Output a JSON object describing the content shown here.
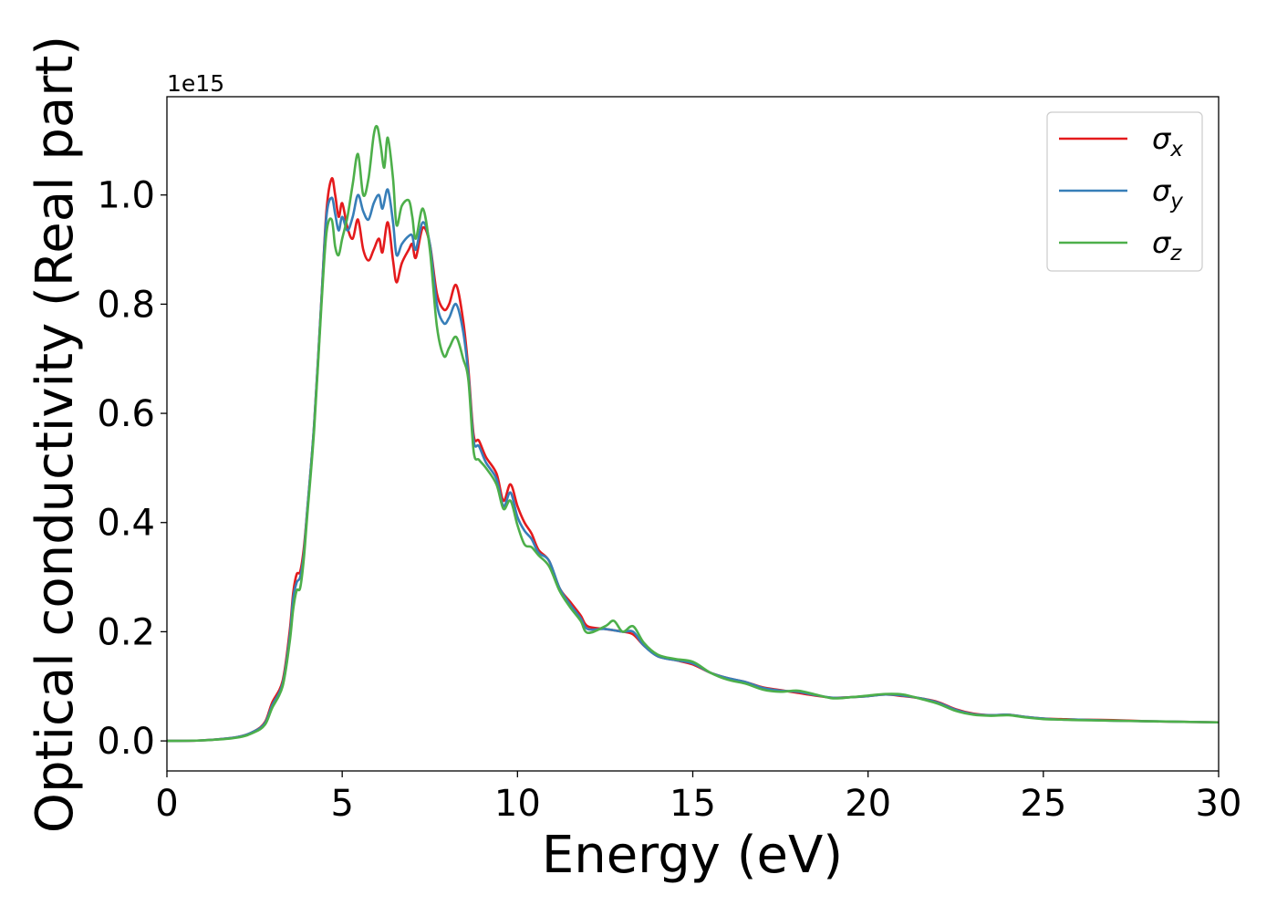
{
  "chart_data": {
    "type": "line",
    "title": "",
    "xlabel": "Energy (eV)",
    "ylabel": "Optical conductivity (Real part)",
    "y_scale_label": "1e15",
    "xlim": [
      0,
      30
    ],
    "ylim": [
      -0.055,
      1.18
    ],
    "x_ticks": [
      0,
      5,
      10,
      15,
      20,
      25,
      30
    ],
    "x_tick_labels": [
      "0",
      "5",
      "10",
      "15",
      "20",
      "25",
      "30"
    ],
    "y_ticks": [
      0.0,
      0.2,
      0.4,
      0.6,
      0.8,
      1.0
    ],
    "y_tick_labels": [
      "0.0",
      "0.2",
      "0.4",
      "0.6",
      "0.8",
      "1.0"
    ],
    "grid": false,
    "legend_position": "top-right",
    "series": [
      {
        "name": "σx",
        "color": "#e41a1c",
        "points": [
          [
            0,
            0
          ],
          [
            1,
            0.001
          ],
          [
            2,
            0.007
          ],
          [
            2.5,
            0.018
          ],
          [
            2.8,
            0.035
          ],
          [
            3.0,
            0.07
          ],
          [
            3.3,
            0.11
          ],
          [
            3.5,
            0.2
          ],
          [
            3.6,
            0.27
          ],
          [
            3.7,
            0.305
          ],
          [
            3.8,
            0.31
          ],
          [
            3.9,
            0.35
          ],
          [
            4.0,
            0.42
          ],
          [
            4.2,
            0.58
          ],
          [
            4.4,
            0.8
          ],
          [
            4.55,
            0.97
          ],
          [
            4.7,
            1.03
          ],
          [
            4.8,
            1.0
          ],
          [
            4.9,
            0.96
          ],
          [
            5.0,
            0.985
          ],
          [
            5.15,
            0.94
          ],
          [
            5.3,
            0.92
          ],
          [
            5.45,
            0.955
          ],
          [
            5.6,
            0.9
          ],
          [
            5.75,
            0.88
          ],
          [
            5.9,
            0.9
          ],
          [
            6.05,
            0.92
          ],
          [
            6.15,
            0.895
          ],
          [
            6.3,
            0.95
          ],
          [
            6.45,
            0.88
          ],
          [
            6.55,
            0.84
          ],
          [
            6.7,
            0.875
          ],
          [
            6.9,
            0.9
          ],
          [
            7.0,
            0.91
          ],
          [
            7.1,
            0.885
          ],
          [
            7.3,
            0.94
          ],
          [
            7.5,
            0.91
          ],
          [
            7.7,
            0.82
          ],
          [
            7.9,
            0.79
          ],
          [
            8.05,
            0.8
          ],
          [
            8.25,
            0.835
          ],
          [
            8.45,
            0.77
          ],
          [
            8.6,
            0.68
          ],
          [
            8.75,
            0.56
          ],
          [
            8.9,
            0.55
          ],
          [
            9.1,
            0.52
          ],
          [
            9.4,
            0.49
          ],
          [
            9.6,
            0.44
          ],
          [
            9.8,
            0.47
          ],
          [
            10.0,
            0.43
          ],
          [
            10.2,
            0.4
          ],
          [
            10.4,
            0.38
          ],
          [
            10.6,
            0.35
          ],
          [
            10.9,
            0.33
          ],
          [
            11.2,
            0.28
          ],
          [
            11.5,
            0.255
          ],
          [
            11.8,
            0.23
          ],
          [
            12.0,
            0.21
          ],
          [
            12.5,
            0.205
          ],
          [
            13.0,
            0.2
          ],
          [
            13.3,
            0.195
          ],
          [
            13.6,
            0.175
          ],
          [
            14.0,
            0.155
          ],
          [
            14.5,
            0.148
          ],
          [
            15.0,
            0.14
          ],
          [
            15.5,
            0.125
          ],
          [
            16.0,
            0.115
          ],
          [
            16.5,
            0.108
          ],
          [
            17.0,
            0.098
          ],
          [
            17.5,
            0.093
          ],
          [
            18.0,
            0.088
          ],
          [
            18.5,
            0.083
          ],
          [
            19.0,
            0.079
          ],
          [
            19.5,
            0.08
          ],
          [
            20.0,
            0.082
          ],
          [
            20.5,
            0.085
          ],
          [
            21.0,
            0.082
          ],
          [
            21.5,
            0.078
          ],
          [
            22.0,
            0.071
          ],
          [
            22.5,
            0.058
          ],
          [
            23.0,
            0.05
          ],
          [
            23.5,
            0.047
          ],
          [
            24.0,
            0.048
          ],
          [
            24.5,
            0.044
          ],
          [
            25.0,
            0.041
          ],
          [
            25.5,
            0.04
          ],
          [
            26.0,
            0.039
          ],
          [
            27.0,
            0.038
          ],
          [
            28.0,
            0.036
          ],
          [
            29.0,
            0.035
          ],
          [
            30.0,
            0.034
          ]
        ]
      },
      {
        "name": "σy",
        "color": "#377eb8",
        "points": [
          [
            0,
            0
          ],
          [
            1,
            0.001
          ],
          [
            2,
            0.007
          ],
          [
            2.5,
            0.018
          ],
          [
            2.8,
            0.033
          ],
          [
            3.0,
            0.065
          ],
          [
            3.3,
            0.105
          ],
          [
            3.5,
            0.19
          ],
          [
            3.6,
            0.26
          ],
          [
            3.7,
            0.29
          ],
          [
            3.8,
            0.3
          ],
          [
            3.9,
            0.34
          ],
          [
            4.0,
            0.42
          ],
          [
            4.2,
            0.58
          ],
          [
            4.4,
            0.8
          ],
          [
            4.55,
            0.96
          ],
          [
            4.7,
            0.995
          ],
          [
            4.8,
            0.965
          ],
          [
            4.9,
            0.935
          ],
          [
            5.0,
            0.96
          ],
          [
            5.15,
            0.935
          ],
          [
            5.3,
            0.96
          ],
          [
            5.45,
            1.0
          ],
          [
            5.6,
            0.97
          ],
          [
            5.75,
            0.955
          ],
          [
            5.9,
            0.985
          ],
          [
            6.05,
            1.0
          ],
          [
            6.15,
            0.975
          ],
          [
            6.3,
            1.01
          ],
          [
            6.45,
            0.95
          ],
          [
            6.55,
            0.89
          ],
          [
            6.7,
            0.91
          ],
          [
            6.9,
            0.925
          ],
          [
            7.0,
            0.925
          ],
          [
            7.1,
            0.9
          ],
          [
            7.3,
            0.95
          ],
          [
            7.5,
            0.91
          ],
          [
            7.7,
            0.8
          ],
          [
            7.9,
            0.765
          ],
          [
            8.05,
            0.775
          ],
          [
            8.25,
            0.8
          ],
          [
            8.45,
            0.75
          ],
          [
            8.6,
            0.67
          ],
          [
            8.75,
            0.55
          ],
          [
            8.9,
            0.54
          ],
          [
            9.1,
            0.51
          ],
          [
            9.4,
            0.48
          ],
          [
            9.6,
            0.43
          ],
          [
            9.8,
            0.455
          ],
          [
            10.0,
            0.41
          ],
          [
            10.2,
            0.385
          ],
          [
            10.4,
            0.37
          ],
          [
            10.6,
            0.345
          ],
          [
            10.9,
            0.33
          ],
          [
            11.2,
            0.28
          ],
          [
            11.5,
            0.25
          ],
          [
            11.8,
            0.225
          ],
          [
            12.0,
            0.205
          ],
          [
            12.5,
            0.205
          ],
          [
            13.0,
            0.2
          ],
          [
            13.3,
            0.2
          ],
          [
            13.6,
            0.175
          ],
          [
            14.0,
            0.155
          ],
          [
            14.5,
            0.148
          ],
          [
            15.0,
            0.142
          ],
          [
            15.5,
            0.125
          ],
          [
            16.0,
            0.115
          ],
          [
            16.5,
            0.108
          ],
          [
            17.0,
            0.097
          ],
          [
            17.5,
            0.092
          ],
          [
            18.0,
            0.09
          ],
          [
            18.5,
            0.084
          ],
          [
            19.0,
            0.079
          ],
          [
            19.5,
            0.08
          ],
          [
            20.0,
            0.082
          ],
          [
            20.5,
            0.085
          ],
          [
            21.0,
            0.083
          ],
          [
            21.5,
            0.078
          ],
          [
            22.0,
            0.07
          ],
          [
            22.5,
            0.057
          ],
          [
            23.0,
            0.049
          ],
          [
            23.5,
            0.047
          ],
          [
            24.0,
            0.048
          ],
          [
            24.5,
            0.044
          ],
          [
            25.0,
            0.041
          ],
          [
            25.5,
            0.039
          ],
          [
            26.0,
            0.039
          ],
          [
            27.0,
            0.037
          ],
          [
            28.0,
            0.036
          ],
          [
            29.0,
            0.035
          ],
          [
            30.0,
            0.034
          ]
        ]
      },
      {
        "name": "σz",
        "color": "#4daf4a",
        "points": [
          [
            0,
            0
          ],
          [
            1,
            0.001
          ],
          [
            2,
            0.006
          ],
          [
            2.5,
            0.016
          ],
          [
            2.8,
            0.03
          ],
          [
            3.0,
            0.06
          ],
          [
            3.3,
            0.1
          ],
          [
            3.5,
            0.18
          ],
          [
            3.6,
            0.24
          ],
          [
            3.7,
            0.275
          ],
          [
            3.8,
            0.28
          ],
          [
            3.9,
            0.33
          ],
          [
            4.0,
            0.41
          ],
          [
            4.2,
            0.57
          ],
          [
            4.4,
            0.79
          ],
          [
            4.55,
            0.93
          ],
          [
            4.7,
            0.955
          ],
          [
            4.8,
            0.905
          ],
          [
            4.9,
            0.89
          ],
          [
            5.0,
            0.92
          ],
          [
            5.15,
            0.96
          ],
          [
            5.3,
            1.02
          ],
          [
            5.45,
            1.075
          ],
          [
            5.6,
            1.0
          ],
          [
            5.75,
            1.03
          ],
          [
            5.9,
            1.11
          ],
          [
            6.0,
            1.125
          ],
          [
            6.1,
            1.09
          ],
          [
            6.2,
            1.05
          ],
          [
            6.3,
            1.105
          ],
          [
            6.45,
            1.03
          ],
          [
            6.55,
            0.945
          ],
          [
            6.7,
            0.98
          ],
          [
            6.9,
            0.99
          ],
          [
            7.0,
            0.96
          ],
          [
            7.1,
            0.92
          ],
          [
            7.3,
            0.975
          ],
          [
            7.5,
            0.9
          ],
          [
            7.7,
            0.76
          ],
          [
            7.9,
            0.705
          ],
          [
            8.05,
            0.72
          ],
          [
            8.25,
            0.74
          ],
          [
            8.45,
            0.7
          ],
          [
            8.6,
            0.66
          ],
          [
            8.75,
            0.53
          ],
          [
            8.9,
            0.515
          ],
          [
            9.1,
            0.5
          ],
          [
            9.4,
            0.47
          ],
          [
            9.6,
            0.425
          ],
          [
            9.8,
            0.44
          ],
          [
            10.0,
            0.395
          ],
          [
            10.2,
            0.36
          ],
          [
            10.4,
            0.355
          ],
          [
            10.6,
            0.34
          ],
          [
            10.9,
            0.32
          ],
          [
            11.2,
            0.275
          ],
          [
            11.5,
            0.245
          ],
          [
            11.8,
            0.22
          ],
          [
            12.0,
            0.198
          ],
          [
            12.5,
            0.21
          ],
          [
            12.75,
            0.22
          ],
          [
            13.0,
            0.2
          ],
          [
            13.3,
            0.21
          ],
          [
            13.6,
            0.18
          ],
          [
            14.0,
            0.158
          ],
          [
            14.5,
            0.15
          ],
          [
            15.0,
            0.145
          ],
          [
            15.5,
            0.125
          ],
          [
            16.0,
            0.112
          ],
          [
            16.5,
            0.105
          ],
          [
            17.0,
            0.094
          ],
          [
            17.5,
            0.09
          ],
          [
            18.0,
            0.092
          ],
          [
            18.5,
            0.085
          ],
          [
            19.0,
            0.078
          ],
          [
            19.5,
            0.08
          ],
          [
            20.0,
            0.083
          ],
          [
            20.5,
            0.086
          ],
          [
            21.0,
            0.085
          ],
          [
            21.5,
            0.077
          ],
          [
            22.0,
            0.068
          ],
          [
            22.5,
            0.055
          ],
          [
            23.0,
            0.048
          ],
          [
            23.5,
            0.046
          ],
          [
            24.0,
            0.047
          ],
          [
            24.5,
            0.043
          ],
          [
            25.0,
            0.04
          ],
          [
            25.5,
            0.039
          ],
          [
            26.0,
            0.038
          ],
          [
            27.0,
            0.037
          ],
          [
            28.0,
            0.036
          ],
          [
            29.0,
            0.035
          ],
          [
            30.0,
            0.034
          ]
        ]
      }
    ]
  }
}
